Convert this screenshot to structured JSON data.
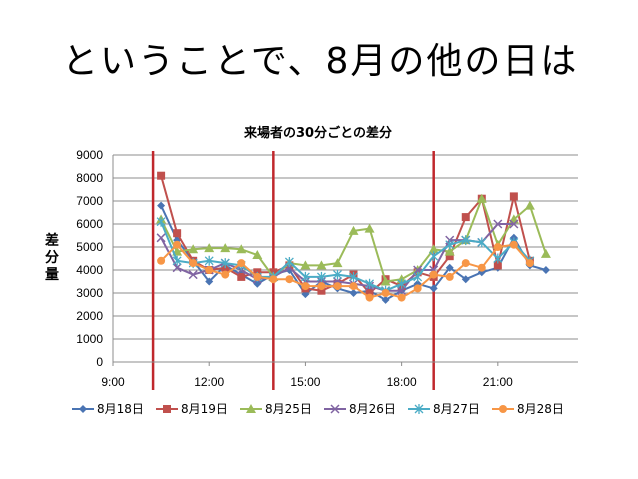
{
  "slide": {
    "title": "ということで、8月の他の日は"
  },
  "chart_data": {
    "type": "line",
    "title": "来場者の30分ごとの差分",
    "ylabel": "差分量",
    "xlabel": "",
    "xlim": [
      9,
      23.5
    ],
    "ylim": [
      0,
      9000
    ],
    "yticks": [
      0,
      1000,
      2000,
      3000,
      4000,
      5000,
      6000,
      7000,
      8000,
      9000
    ],
    "xticks": [
      {
        "value": 9,
        "label": "9:00"
      },
      {
        "value": 12,
        "label": "12:00"
      },
      {
        "value": 15,
        "label": "15:00"
      },
      {
        "value": 18,
        "label": "18:00"
      },
      {
        "value": 21,
        "label": "21:00"
      }
    ],
    "vlines": [
      10.25,
      14.0,
      19.0
    ],
    "vline_color": "#c0282d",
    "grid": true,
    "legend": "bottom",
    "series": [
      {
        "name": "8月18日",
        "color": "#4a74b3",
        "marker": "diamond",
        "x": [
          10.5,
          11,
          11.5,
          12,
          12.5,
          13,
          13.5,
          14,
          14.5,
          15,
          15.5,
          16,
          16.5,
          17,
          17.5,
          18,
          18.5,
          19,
          19.5,
          20,
          20.5,
          21,
          21.5,
          22,
          22.5
        ],
        "y": [
          6800,
          5300,
          4400,
          3500,
          4200,
          3800,
          3400,
          3800,
          4000,
          2950,
          3500,
          3200,
          3000,
          3100,
          2700,
          3100,
          3400,
          3200,
          4100,
          3600,
          3900,
          4100,
          5400,
          4200,
          4000
        ]
      },
      {
        "name": "8月19日",
        "color": "#c0504d",
        "marker": "square",
        "x": [
          10.5,
          11,
          11.5,
          12,
          12.5,
          13,
          13.5,
          14,
          14.5,
          15,
          15.5,
          16,
          16.5,
          17,
          17.5,
          18,
          18.5,
          19,
          19.5,
          20,
          20.5,
          21,
          21.5,
          22
        ],
        "y": [
          8100,
          5600,
          4400,
          4000,
          4100,
          3700,
          3900,
          3900,
          4200,
          3200,
          3100,
          3400,
          3800,
          3000,
          3600,
          3300,
          3900,
          3700,
          4600,
          6300,
          7100,
          4200,
          7200,
          4400
        ]
      },
      {
        "name": "8月25日",
        "color": "#9bbb59",
        "marker": "triangle",
        "x": [
          10.5,
          11,
          11.5,
          12,
          12.5,
          13,
          13.5,
          14,
          14.5,
          15,
          15.5,
          16,
          16.5,
          17,
          17.5,
          18,
          18.5,
          19,
          19.5,
          20,
          20.5,
          21,
          21.5,
          22,
          22.5
        ],
        "y": [
          6200,
          4800,
          4900,
          4950,
          4950,
          4900,
          4650,
          3700,
          4300,
          4200,
          4200,
          4300,
          5700,
          5800,
          3500,
          3600,
          4000,
          4900,
          4800,
          5300,
          7100,
          5100,
          6200,
          6800,
          4700
        ]
      },
      {
        "name": "8月26日",
        "color": "#8064a2",
        "marker": "x",
        "x": [
          10.5,
          11,
          11.5,
          12,
          12.5,
          13,
          13.5,
          14,
          14.5,
          15,
          15.5,
          16,
          16.5,
          17,
          17.5,
          18,
          18.5,
          19,
          19.5,
          20,
          20.5,
          21,
          21.5
        ],
        "y": [
          5400,
          4100,
          3800,
          4000,
          4300,
          4000,
          3600,
          3700,
          4100,
          3500,
          3500,
          3500,
          3400,
          3300,
          3100,
          3100,
          4000,
          4000,
          5300,
          5300,
          5200,
          6000,
          6000
        ]
      },
      {
        "name": "8月27日",
        "color": "#4bacc6",
        "marker": "star",
        "x": [
          10.5,
          11,
          11.5,
          12,
          12.5,
          13,
          13.5,
          14,
          14.5,
          15,
          15.5,
          16,
          16.5,
          17,
          17.5,
          18,
          18.5,
          19,
          19.5,
          20,
          20.5,
          21,
          21.5,
          22
        ],
        "y": [
          6100,
          4400,
          4300,
          4400,
          4300,
          4200,
          3700,
          3700,
          4350,
          3700,
          3700,
          3800,
          3700,
          3400,
          3100,
          3400,
          3700,
          4600,
          5100,
          5300,
          5200,
          4500,
          5200,
          4400
        ]
      },
      {
        "name": "8月28日",
        "color": "#f79646",
        "marker": "circle",
        "x": [
          10.5,
          11,
          11.5,
          12,
          12.5,
          13,
          13.5,
          14,
          14.5,
          15,
          15.5,
          16,
          16.5,
          17,
          17.5,
          18,
          18.5,
          19,
          19.5,
          20,
          20.5,
          21,
          21.5,
          22
        ],
        "y": [
          4400,
          5100,
          4300,
          4000,
          3800,
          4300,
          3700,
          3600,
          3600,
          3300,
          3300,
          3300,
          3300,
          2800,
          3000,
          2800,
          3200,
          3800,
          3700,
          4300,
          4100,
          5000,
          5100,
          4300
        ]
      }
    ]
  }
}
